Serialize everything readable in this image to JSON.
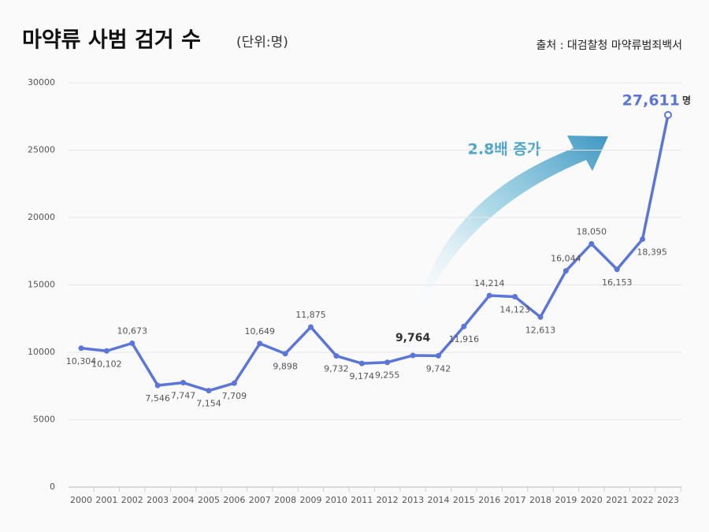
{
  "chart_data": {
    "type": "line",
    "title": "마약류 사범 검거 수",
    "subtitle": "(단위:명)",
    "source": "출처 : 대검찰청 마약류범죄백서",
    "annotation": "2.8배 증가",
    "unit": "명",
    "categories": [
      "2000",
      "2001",
      "2002",
      "2003",
      "2004",
      "2005",
      "2006",
      "2007",
      "2008",
      "2009",
      "2010",
      "2011",
      "2012",
      "2013",
      "2014",
      "2015",
      "2016",
      "2017",
      "2018",
      "2019",
      "2020",
      "2021",
      "2022",
      "2023"
    ],
    "series": [
      {
        "name": "마약류 사범 검거 수",
        "color": "#5b76d6",
        "values": [
          10304,
          10102,
          10673,
          7546,
          7747,
          7154,
          7709,
          10649,
          9898,
          11875,
          9732,
          9174,
          9255,
          9764,
          9742,
          11916,
          14214,
          14123,
          12613,
          16044,
          18050,
          16153,
          18395,
          27611
        ],
        "value_labels": [
          "10,304",
          "10,102",
          "10,673",
          "7,546",
          "7,747",
          "7,154",
          "7,709",
          "10,649",
          "9,898",
          "11,875",
          "9,732",
          "9,174",
          "9,255",
          "9,764",
          "9,742",
          "11,916",
          "14,214",
          "14,123",
          "12,613",
          "16,044",
          "18,050",
          "16,153",
          "18,395",
          "27,611"
        ]
      }
    ],
    "ylim": [
      0,
      30000
    ],
    "yticks": [
      0,
      5000,
      10000,
      15000,
      20000,
      25000,
      30000
    ],
    "grid": true
  }
}
